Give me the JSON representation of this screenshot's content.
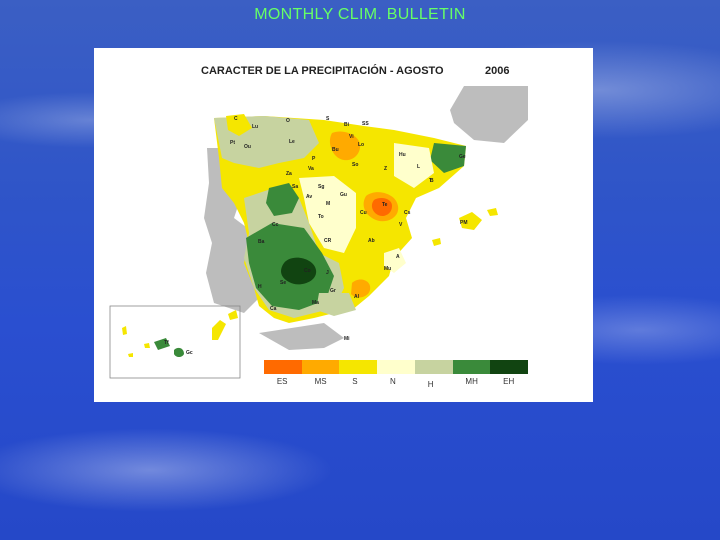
{
  "slide": {
    "title": "MONTHLY CLIM. BULLETIN"
  },
  "map": {
    "title": "CARACTER DE LA PRECIPITACIÓN -  AGOSTO",
    "year": "2006",
    "colors": {
      "ES": "#ff6a00",
      "MS": "#ffaa00",
      "S": "#f5e600",
      "N": "#ffffcc",
      "H": "#c7d3a0",
      "MH": "#3a8a3a",
      "EH": "#114411",
      "land_other": "#bdbdbd",
      "sea": "#ffffff"
    },
    "legend": [
      {
        "code": "ES",
        "color": "#ff6a00"
      },
      {
        "code": "MS",
        "color": "#ffaa00"
      },
      {
        "code": "S",
        "color": "#f5e600"
      },
      {
        "code": "N",
        "color": "#ffffcc"
      },
      {
        "code": "H",
        "color": "#c7d3a0"
      },
      {
        "code": "MH",
        "color": "#3a8a3a"
      },
      {
        "code": "EH",
        "color": "#114411"
      }
    ],
    "station_labels": [
      "C",
      "Lu",
      "O",
      "S",
      "Bi",
      "SS",
      "Pt",
      "Ou",
      "Le",
      "Vi",
      "P",
      "Lo",
      "Bu",
      "Hu",
      "Ge",
      "Za",
      "Va",
      "So",
      "Z",
      "L",
      "Sa",
      "Sg",
      "Gu",
      "B",
      "T",
      "Av",
      "M",
      "Te",
      "Cs",
      "Cc",
      "To",
      "Cu",
      "V",
      "Ba",
      "CR",
      "Ab",
      "A",
      "Co",
      "J",
      "Mu",
      "H",
      "Se",
      "Gr",
      "Al",
      "Ma",
      "Ca",
      "PM",
      "Mi",
      "Gc",
      "Tf"
    ]
  }
}
